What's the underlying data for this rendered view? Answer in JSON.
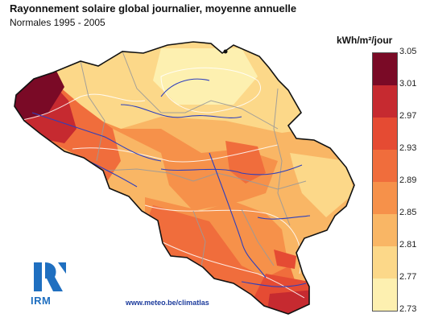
{
  "title": "Rayonnement solaire global journalier, moyenne annuelle",
  "subtitle": "Normales 1995 - 2005",
  "legend": {
    "unit": "kWh/m²/jour",
    "ticks": [
      "3.05",
      "3.01",
      "2.97",
      "2.93",
      "2.89",
      "2.85",
      "2.81",
      "2.77",
      "2.73"
    ],
    "colors": [
      "#7a0a26",
      "#c62a30",
      "#e54b33",
      "#f06d3c",
      "#f6914a",
      "#f9b665",
      "#fcd889",
      "#fdf0b0"
    ]
  },
  "credit": "www.meteo.be/climatlas",
  "logo": {
    "name": "IRM"
  }
}
